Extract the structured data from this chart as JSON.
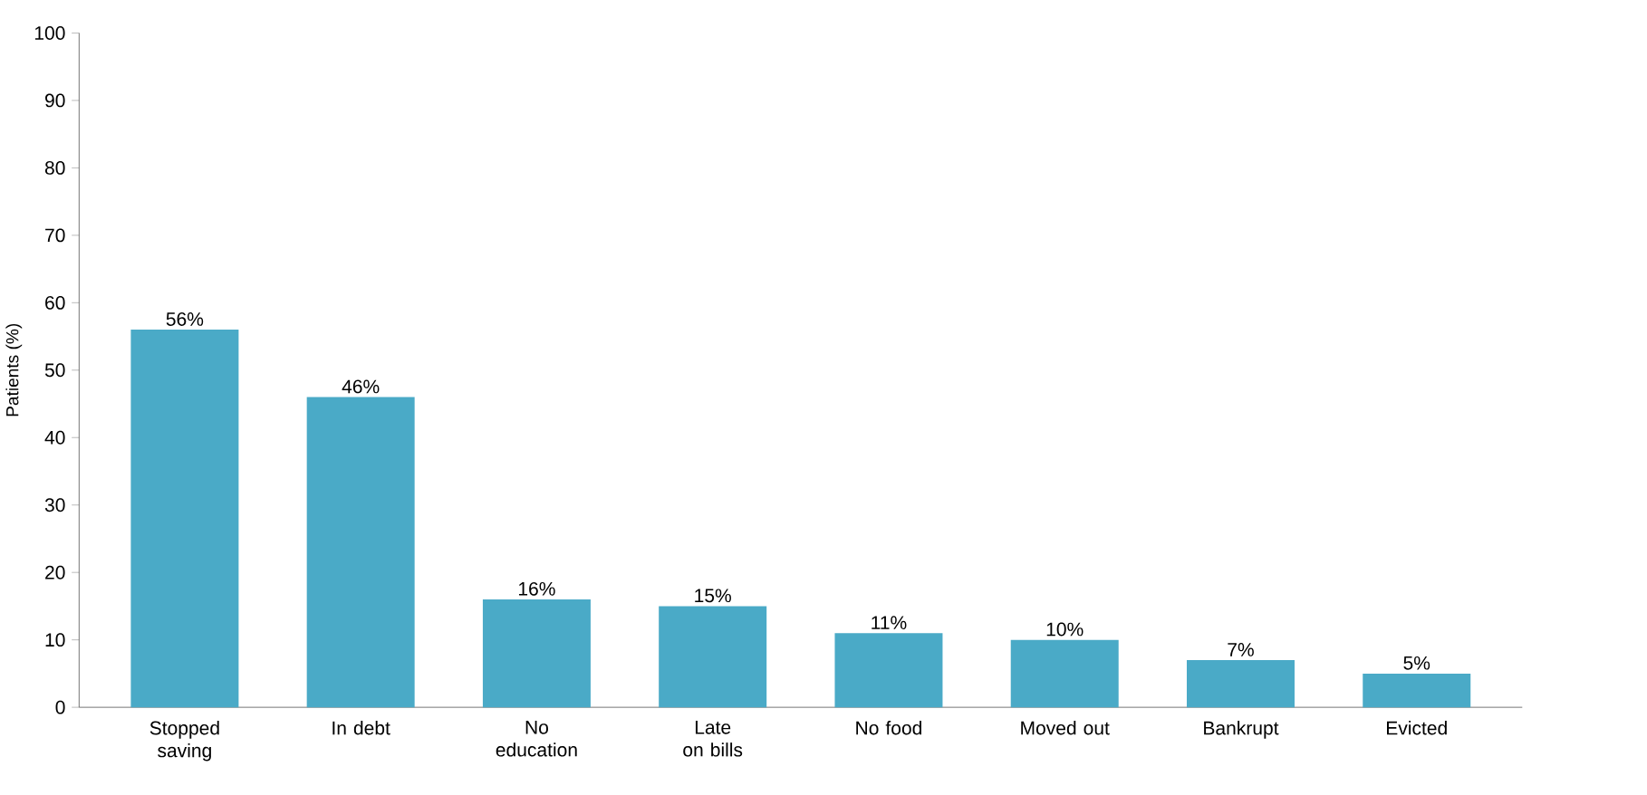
{
  "chart_data": {
    "type": "bar",
    "ylabel": "Patients (%)",
    "categories": [
      "Stopped saving",
      "In debt",
      "No education",
      "Late on bills",
      "No food",
      "Moved out",
      "Bankrupt",
      "Evicted"
    ],
    "values": [
      56,
      46,
      16,
      15,
      11,
      10,
      7,
      5
    ],
    "value_labels": [
      "56%",
      "46%",
      "16%",
      "15%",
      "11%",
      "10%",
      "7%",
      "5%"
    ],
    "color": "#4aaac7",
    "ylim": [
      0,
      100
    ],
    "yticks": [
      0,
      10,
      20,
      30,
      40,
      50,
      60,
      70,
      80,
      90,
      100
    ],
    "grid": false
  }
}
